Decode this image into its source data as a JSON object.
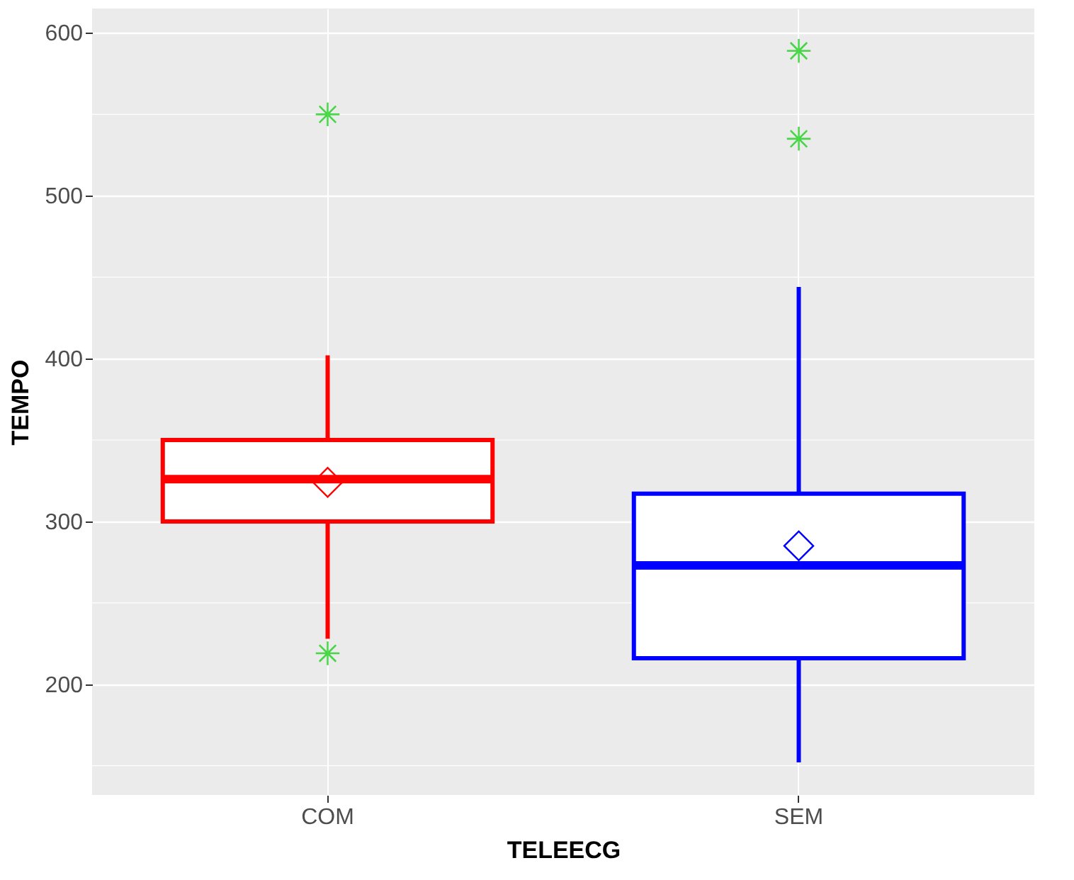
{
  "chart_data": {
    "type": "box",
    "xlabel": "TELEECG",
    "ylabel": "TEMPO",
    "categories": [
      "COM",
      "SEM"
    ],
    "colors": [
      "#ff0000",
      "#0000ff"
    ],
    "boxes": [
      {
        "low": 228,
        "q1": 300,
        "median": 326,
        "q3": 350,
        "high": 402,
        "mean": 324,
        "outliers": [
          550,
          219
        ]
      },
      {
        "low": 152,
        "q1": 216,
        "median": 273,
        "q3": 317,
        "high": 444,
        "mean": 285,
        "outliers": [
          589,
          535
        ]
      }
    ],
    "ylim": [
      132,
      615
    ],
    "yticks": [
      200,
      300,
      400,
      500,
      600
    ],
    "grid": true
  }
}
